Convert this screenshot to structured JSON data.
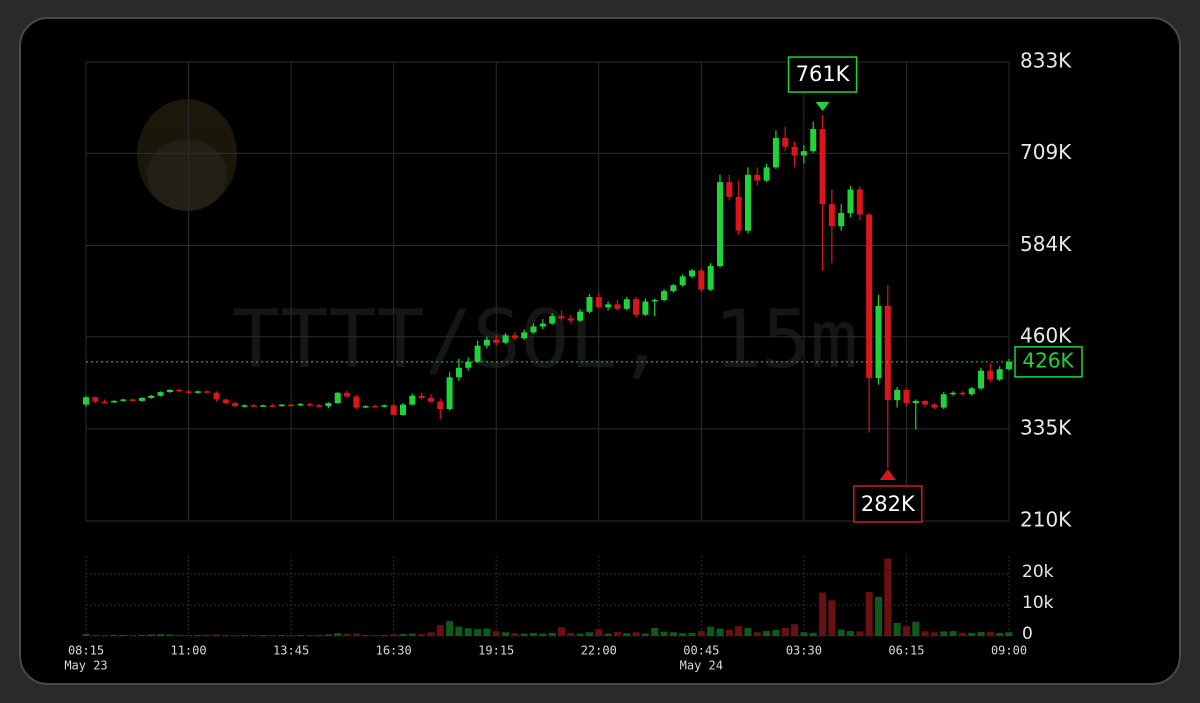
{
  "chart_data": {
    "type": "candlestick",
    "watermark": "TTTT/SOL, 15m",
    "up_color": "#1ed43a",
    "down_color": "#d8161b",
    "up_volume_color": "#0e5a1a",
    "down_volume_color": "#6a1010",
    "xlim": [
      0,
      99
    ],
    "xticks": [
      {
        "value": 0,
        "label": "08:15"
      },
      {
        "value": 11,
        "label": "11:00"
      },
      {
        "value": 22,
        "label": "13:45"
      },
      {
        "value": 33,
        "label": "16:30"
      },
      {
        "value": 44,
        "label": "19:15"
      },
      {
        "value": 55,
        "label": "22:00"
      },
      {
        "value": 66,
        "label": "00:45"
      },
      {
        "value": 77,
        "label": "03:30"
      },
      {
        "value": 88,
        "label": "06:15"
      },
      {
        "value": 99,
        "label": "09:00"
      }
    ],
    "date_labels": [
      {
        "value": 0,
        "label": "May 23"
      },
      {
        "value": 66,
        "label": "May 24"
      }
    ],
    "ylim": [
      210,
      833
    ],
    "yticks": [
      {
        "value": 210,
        "label": "210K"
      },
      {
        "value": 335,
        "label": "335K"
      },
      {
        "value": 460,
        "label": "460K"
      },
      {
        "value": 584,
        "label": "584K"
      },
      {
        "value": 709,
        "label": "709K"
      },
      {
        "value": 833,
        "label": "833K"
      }
    ],
    "volume_ylim": [
      0,
      25.8
    ],
    "volume_yticks": [
      0,
      {
        "value": 10,
        "label": "10k"
      },
      {
        "value": 20,
        "label": "20k"
      }
    ],
    "last_price": {
      "value": 426,
      "label": "426K"
    },
    "high_marker": {
      "value": 761,
      "label": "761K"
    },
    "low_marker": {
      "value": 282,
      "label": "282K"
    },
    "open": [
      368,
      378,
      372,
      371,
      373,
      375,
      373,
      377,
      380,
      385,
      388,
      386,
      385,
      386,
      384,
      375,
      370,
      366,
      367,
      366,
      367,
      366,
      368,
      367,
      369,
      367,
      366,
      370,
      384,
      379,
      364,
      366,
      365,
      367,
      354,
      368,
      380,
      377,
      372,
      362,
      405,
      418,
      426,
      448,
      456,
      452,
      462,
      458,
      466,
      474,
      478,
      488,
      485,
      482,
      494,
      514,
      500,
      504,
      498,
      511,
      490,
      508,
      510,
      522,
      530,
      542,
      550,
      524,
      556,
      670,
      650,
      604,
      680,
      672,
      690,
      730,
      718,
      706,
      712,
      742,
      640,
      610,
      628,
      660,
      626,
      404,
      502,
      374,
      388,
      370,
      373,
      368,
      364,
      382,
      384,
      382,
      390,
      414,
      402,
      416
    ],
    "high": [
      380,
      379,
      375,
      374,
      376,
      376,
      378,
      381,
      386,
      389,
      390,
      388,
      387,
      387,
      386,
      376,
      372,
      368,
      369,
      368,
      369,
      369,
      369,
      370,
      370,
      369,
      371,
      385,
      387,
      381,
      367,
      368,
      368,
      369,
      370,
      383,
      384,
      382,
      376,
      412,
      430,
      432,
      455,
      460,
      462,
      465,
      466,
      470,
      478,
      484,
      492,
      496,
      490,
      497,
      518,
      520,
      508,
      510,
      514,
      514,
      512,
      512,
      525,
      532,
      545,
      552,
      553,
      560,
      680,
      680,
      672,
      690,
      690,
      695,
      740,
      745,
      725,
      720,
      752,
      761,
      660,
      640,
      665,
      664,
      628,
      517,
      530,
      392,
      390,
      375,
      374,
      370,
      385,
      386,
      386,
      392,
      418,
      424,
      420,
      430
    ],
    "low": [
      365,
      370,
      370,
      370,
      372,
      372,
      372,
      376,
      379,
      384,
      385,
      384,
      383,
      383,
      372,
      368,
      364,
      364,
      365,
      365,
      365,
      365,
      365,
      366,
      365,
      364,
      363,
      369,
      377,
      362,
      363,
      364,
      364,
      353,
      353,
      367,
      375,
      370,
      348,
      360,
      400,
      414,
      424,
      444,
      448,
      450,
      455,
      456,
      464,
      470,
      476,
      482,
      478,
      480,
      492,
      498,
      496,
      496,
      496,
      486,
      488,
      488,
      508,
      520,
      528,
      540,
      521,
      522,
      554,
      645,
      598,
      600,
      665,
      670,
      688,
      712,
      690,
      695,
      710,
      550,
      560,
      604,
      622,
      618,
      330,
      395,
      282,
      364,
      366,
      334,
      364,
      362,
      362,
      380,
      380,
      380,
      388,
      398,
      400,
      414
    ],
    "close": [
      378,
      372,
      371,
      373,
      375,
      373,
      377,
      380,
      385,
      388,
      386,
      385,
      386,
      384,
      375,
      370,
      366,
      367,
      366,
      367,
      366,
      368,
      367,
      369,
      367,
      366,
      370,
      384,
      379,
      364,
      366,
      365,
      367,
      354,
      368,
      380,
      377,
      372,
      362,
      405,
      418,
      426,
      448,
      456,
      452,
      462,
      458,
      466,
      474,
      478,
      488,
      485,
      482,
      494,
      514,
      500,
      504,
      498,
      511,
      490,
      508,
      510,
      522,
      530,
      542,
      550,
      524,
      556,
      670,
      650,
      604,
      680,
      672,
      690,
      730,
      718,
      706,
      712,
      742,
      640,
      610,
      628,
      660,
      626,
      404,
      502,
      374,
      388,
      370,
      373,
      368,
      364,
      382,
      384,
      382,
      390,
      414,
      402,
      416,
      426
    ],
    "volume": [
      0.6,
      0.4,
      0.3,
      0.4,
      0.3,
      0.3,
      0.4,
      0.5,
      0.6,
      0.5,
      0.4,
      0.3,
      0.3,
      0.4,
      0.5,
      0.4,
      0.3,
      0.3,
      0.3,
      0.3,
      0.3,
      0.3,
      0.3,
      0.3,
      0.3,
      0.4,
      0.5,
      0.9,
      0.7,
      0.8,
      0.3,
      0.3,
      0.3,
      0.6,
      0.7,
      0.8,
      0.6,
      1.2,
      3.5,
      4.8,
      3,
      2.5,
      2.2,
      2.4,
      1.5,
      1.2,
      0.9,
      0.8,
      1,
      0.8,
      1,
      2.8,
      1,
      0.8,
      1.2,
      2.2,
      0.8,
      1.3,
      0.9,
      1.2,
      0.8,
      2.6,
      1.4,
      1.2,
      0.9,
      1,
      1.6,
      3,
      2.4,
      2,
      3.2,
      2.6,
      1.2,
      1.6,
      2,
      2.6,
      3.8,
      1.2,
      1,
      14,
      11.5,
      2.1,
      1.6,
      1.5,
      14.2,
      12.6,
      25,
      4.2,
      3.2,
      4.6,
      1.5,
      1.2,
      1.5,
      1.6,
      1.1,
      1,
      1.3,
      1.4,
      1,
      1.2
    ]
  }
}
